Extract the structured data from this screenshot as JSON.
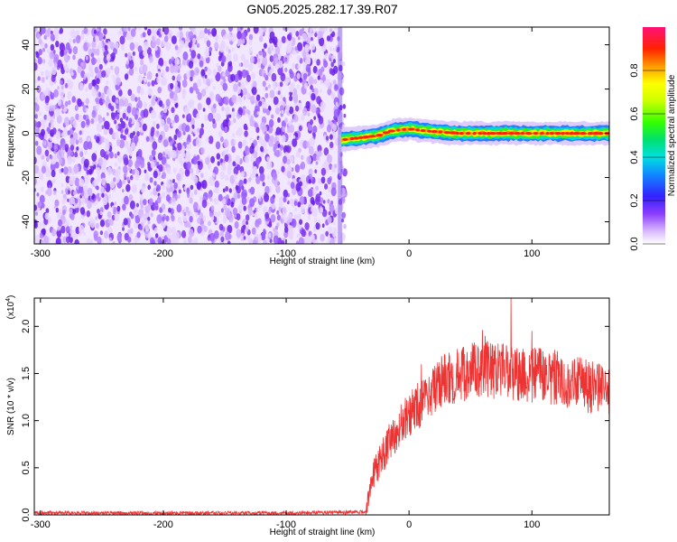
{
  "chart_data": [
    {
      "type": "heatmap",
      "title": "GN05.2025.282.17.39.R07",
      "xlabel": "Height of straight line (km)",
      "ylabel": "Frequency (Hz)",
      "xlim": [
        -305,
        163
      ],
      "ylim": [
        -50,
        48
      ],
      "xticks": [
        -300,
        -200,
        -100,
        0,
        100
      ],
      "yticks": [
        -40,
        -20,
        0,
        20,
        40
      ],
      "noise_region_x": [
        -305,
        -55
      ],
      "signal_region_x": [
        -55,
        163
      ],
      "signal_frequency_profile": [
        {
          "x": -55,
          "y": -3
        },
        {
          "x": -40,
          "y": -2
        },
        {
          "x": -25,
          "y": -1
        },
        {
          "x": -15,
          "y": 1
        },
        {
          "x": 0,
          "y": 2
        },
        {
          "x": 15,
          "y": 1
        },
        {
          "x": 40,
          "y": 0
        },
        {
          "x": 100,
          "y": 0
        },
        {
          "x": 163,
          "y": 0
        }
      ],
      "colorbar": {
        "label": "Normalized spectral amplitude",
        "ticks": [
          "0.0",
          "0.2",
          "0.4",
          "0.6",
          "0.8"
        ],
        "range": [
          0,
          1
        ]
      }
    },
    {
      "type": "line",
      "xlabel": "Height of straight line (km)",
      "ylabel": "SNR (10 * v/v)",
      "scale_label": "(x10",
      "scale_exponent": "4",
      "scale_suffix": ")",
      "xlim": [
        -305,
        163
      ],
      "ylim": [
        0,
        2.3
      ],
      "xticks": [
        -300,
        -200,
        -100,
        0,
        100
      ],
      "yticks": [
        "0.0",
        "0.5",
        "1.0",
        "1.5",
        "2.0"
      ],
      "series_color": "#ee3333",
      "trend": [
        {
          "x": -305,
          "y": 0.02
        },
        {
          "x": -100,
          "y": 0.02
        },
        {
          "x": -35,
          "y": 0.03
        },
        {
          "x": -32,
          "y": 0.3
        },
        {
          "x": -25,
          "y": 0.55
        },
        {
          "x": -10,
          "y": 0.9
        },
        {
          "x": 0,
          "y": 1.05
        },
        {
          "x": 15,
          "y": 1.25
        },
        {
          "x": 30,
          "y": 1.45
        },
        {
          "x": 60,
          "y": 1.55
        },
        {
          "x": 90,
          "y": 1.5
        },
        {
          "x": 120,
          "y": 1.45
        },
        {
          "x": 163,
          "y": 1.3
        }
      ],
      "spikes": [
        {
          "x": 83,
          "y": 2.3
        },
        {
          "x": 100,
          "y": 1.95
        },
        {
          "x": 62,
          "y": 1.9
        }
      ]
    }
  ]
}
